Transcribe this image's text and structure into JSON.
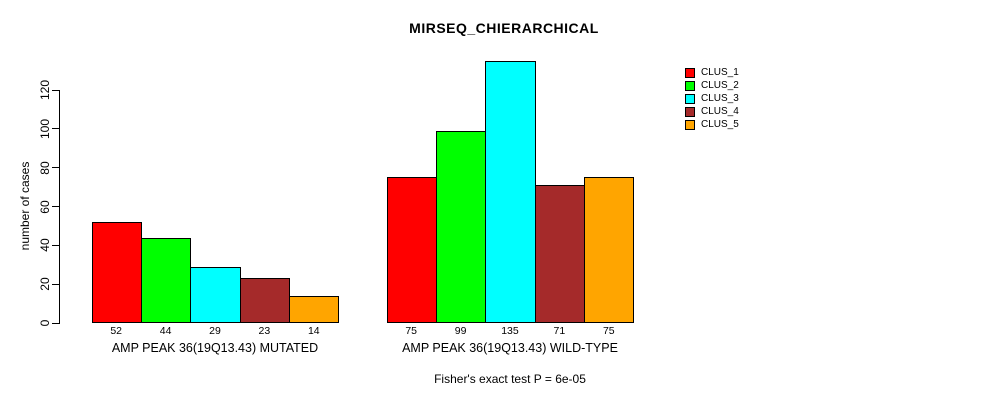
{
  "chart_data": {
    "type": "bar",
    "title": "MIRSEQ_CHIERARCHICAL",
    "ylabel": "number of cases",
    "xlabel": "",
    "categories": [
      "AMP PEAK 36(19Q13.43) MUTATED",
      "AMP PEAK 36(19Q13.43) WILD-TYPE"
    ],
    "series": [
      {
        "name": "CLUS_1",
        "color": "#ff0000",
        "values": [
          52,
          75
        ]
      },
      {
        "name": "CLUS_2",
        "color": "#00ff00",
        "values": [
          44,
          99
        ]
      },
      {
        "name": "CLUS_3",
        "color": "#00ffff",
        "values": [
          29,
          135
        ]
      },
      {
        "name": "CLUS_4",
        "color": "#a52a2a",
        "values": [
          23,
          71
        ]
      },
      {
        "name": "CLUS_5",
        "color": "#ffa500",
        "values": [
          14,
          75
        ]
      }
    ],
    "bar_value_labels": [
      [
        "52",
        "44",
        "29",
        "23",
        "14"
      ],
      [
        "75",
        "99",
        "135",
        "71",
        "75"
      ]
    ],
    "y_ticks": [
      0,
      20,
      40,
      60,
      80,
      100,
      120
    ],
    "ylim": [
      0,
      137
    ],
    "grid": false,
    "legend_position": "right",
    "annotation": "Fisher's exact test P = 6e-05"
  }
}
